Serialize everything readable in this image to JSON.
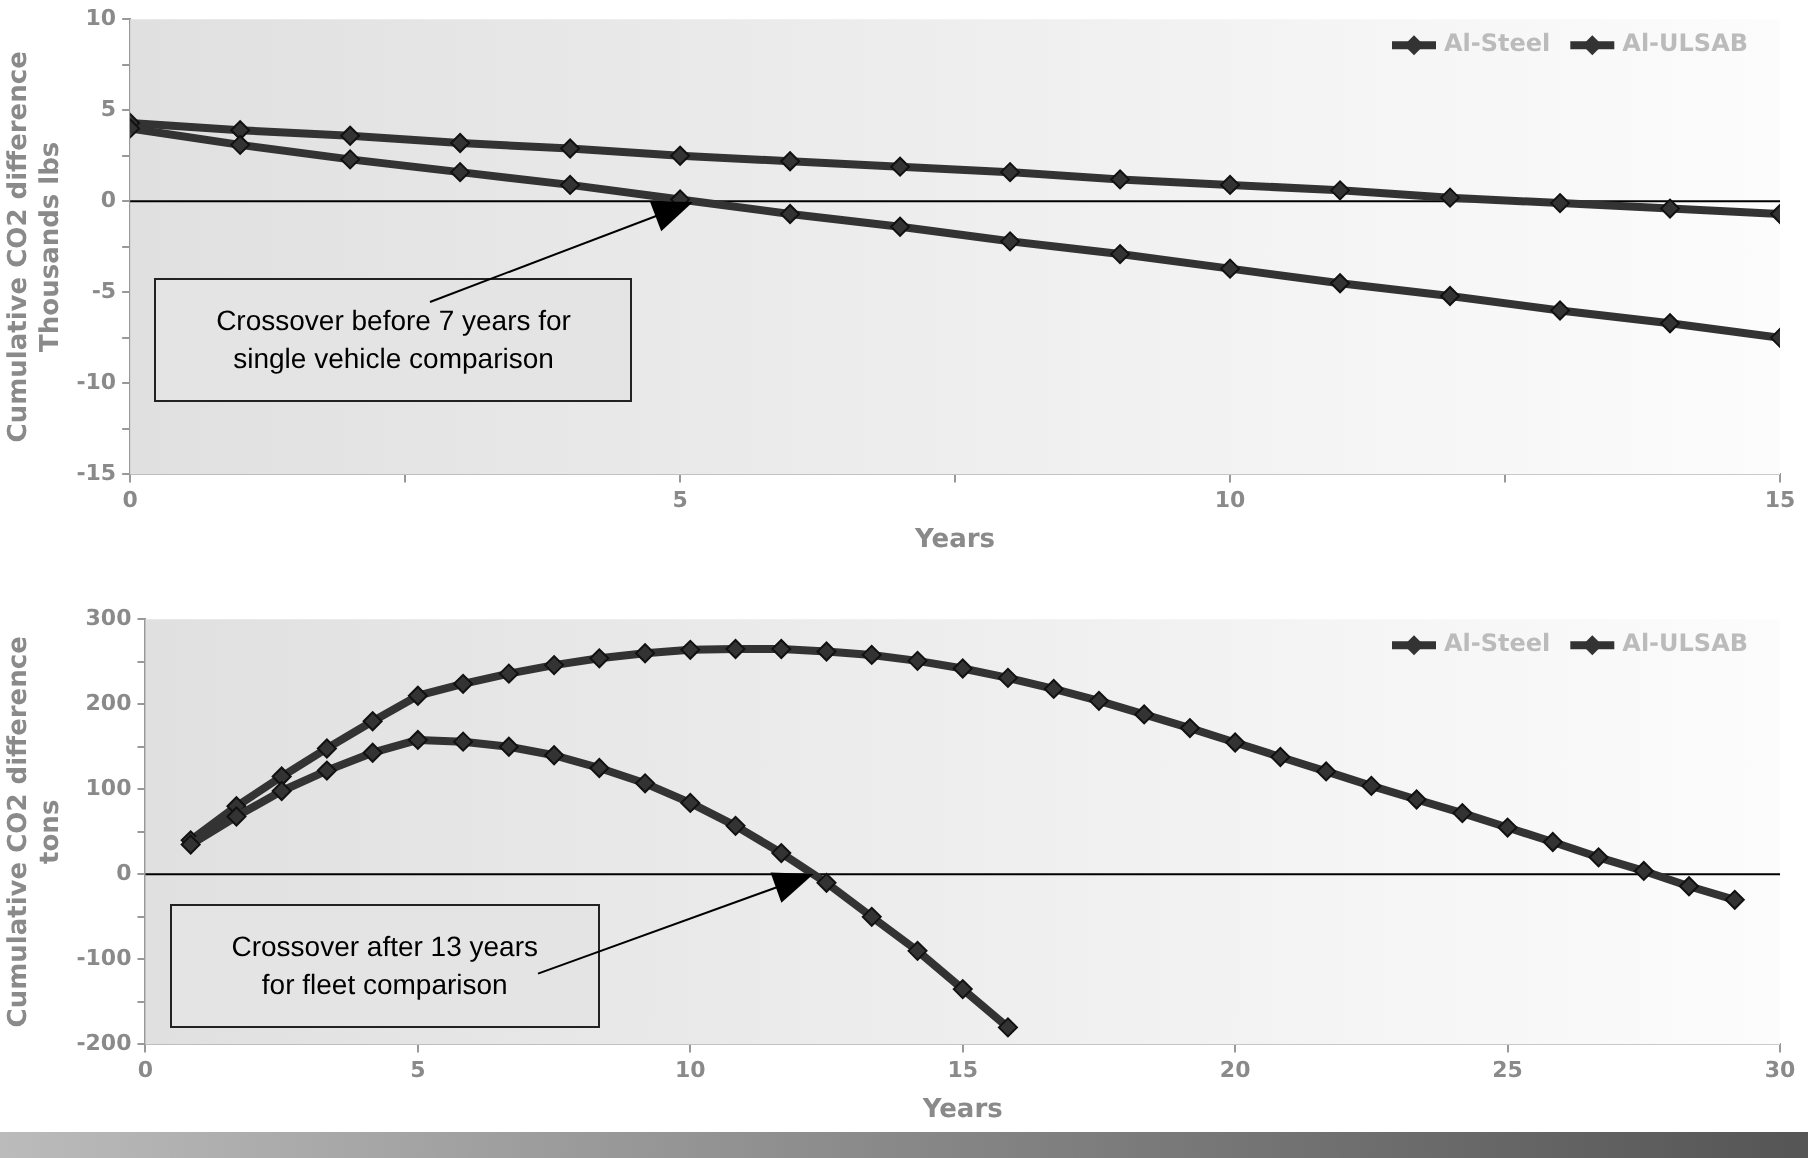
{
  "chart_data": [
    {
      "type": "line",
      "ylabel": "Cumulative CO2 difference\nThousands lbs",
      "xlabel": "Years",
      "x": [
        0,
        1,
        2,
        3,
        4,
        5,
        6,
        7,
        8,
        9,
        10,
        11,
        12,
        13,
        14,
        15
      ],
      "series": [
        {
          "name": "Al-Steel",
          "color": "#333333",
          "values": [
            4.0,
            3.1,
            2.3,
            1.6,
            0.9,
            0.1,
            -0.7,
            -1.4,
            -2.2,
            -2.9,
            -3.7,
            -4.5,
            -5.2,
            -6.0,
            -6.7,
            -7.5
          ]
        },
        {
          "name": "Al-ULSAB",
          "color": "#333333",
          "values": [
            4.3,
            3.9,
            3.6,
            3.2,
            2.9,
            2.5,
            2.2,
            1.9,
            1.6,
            1.2,
            0.9,
            0.6,
            0.2,
            -0.1,
            -0.4,
            -0.7
          ]
        }
      ],
      "xlim": [
        0,
        15
      ],
      "xticks": [
        0,
        {
          "value": 2.5,
          "label": null
        },
        5,
        {
          "value": 7.5,
          "label": null
        },
        10,
        {
          "value": 12.5,
          "label": null
        },
        15
      ],
      "ylim": [
        -15,
        10
      ],
      "yticks": [
        -15,
        {
          "value": -12.5,
          "label": null
        },
        -10,
        {
          "value": -7.5,
          "label": null
        },
        -5,
        {
          "value": -2.5,
          "label": null
        },
        0,
        {
          "value": 2.5,
          "label": null
        },
        5,
        {
          "value": 7.5,
          "label": null
        },
        10
      ],
      "ref_lines": [
        {
          "axis": "y",
          "value": 0,
          "color": "#000000"
        }
      ],
      "annotations": [
        "Crossover before 7 years for\nsingle vehicle comparison"
      ],
      "legend": "top right",
      "marker": "diamond",
      "line_style": "solid",
      "grid": false
    },
    {
      "type": "line",
      "ylabel": "Cumulative CO2 difference\ntons",
      "xlabel": "Years",
      "series": [
        {
          "name": "Al-Steel",
          "color": "#333333",
          "x": [
            0.83,
            1.67,
            2.5,
            3.33,
            4.17,
            5,
            5.83,
            6.67,
            7.5,
            8.33,
            9.17,
            10,
            10.83,
            11.67,
            12.5,
            13.33,
            14.17,
            15,
            15.83
          ],
          "values": [
            35,
            68,
            98,
            122,
            143,
            158,
            156,
            150,
            140,
            125,
            107,
            84,
            57,
            25,
            -10,
            -50,
            -90,
            -135,
            -180
          ]
        },
        {
          "name": "Al-ULSAB",
          "color": "#333333",
          "x": [
            0.83,
            1.67,
            2.5,
            3.33,
            4.17,
            5,
            5.83,
            6.67,
            7.5,
            8.33,
            9.17,
            10,
            10.83,
            11.67,
            12.5,
            13.33,
            14.17,
            15,
            15.83,
            16.67,
            17.5,
            18.33,
            19.17,
            20,
            20.83,
            21.67,
            22.5,
            23.33,
            24.17,
            25,
            25.83,
            26.67,
            27.5,
            28.33,
            29.17
          ],
          "values": [
            40,
            80,
            115,
            148,
            180,
            210,
            224,
            236,
            246,
            254,
            260,
            264,
            265,
            265,
            262,
            258,
            251,
            242,
            231,
            218,
            204,
            188,
            172,
            155,
            138,
            121,
            104,
            88,
            72,
            55,
            38,
            20,
            4,
            -14,
            -30
          ]
        }
      ],
      "xlim": [
        0,
        30
      ],
      "xticks": [
        0,
        5,
        10,
        15,
        20,
        25,
        30
      ],
      "ylim": [
        -200,
        300
      ],
      "yticks": [
        -200,
        {
          "value": -150,
          "label": null
        },
        -100,
        {
          "value": -50,
          "label": null
        },
        0,
        {
          "value": 50,
          "label": null
        },
        100,
        {
          "value": 150,
          "label": null
        },
        200,
        {
          "value": 250,
          "label": null
        },
        300
      ],
      "ref_lines": [
        {
          "axis": "y",
          "value": 0,
          "color": "#000000"
        }
      ],
      "annotations": [
        "Crossover after 13 years\nfor fleet  comparison"
      ],
      "legend": "top right",
      "marker": "diamond",
      "line_style": "solid",
      "grid": false
    }
  ]
}
